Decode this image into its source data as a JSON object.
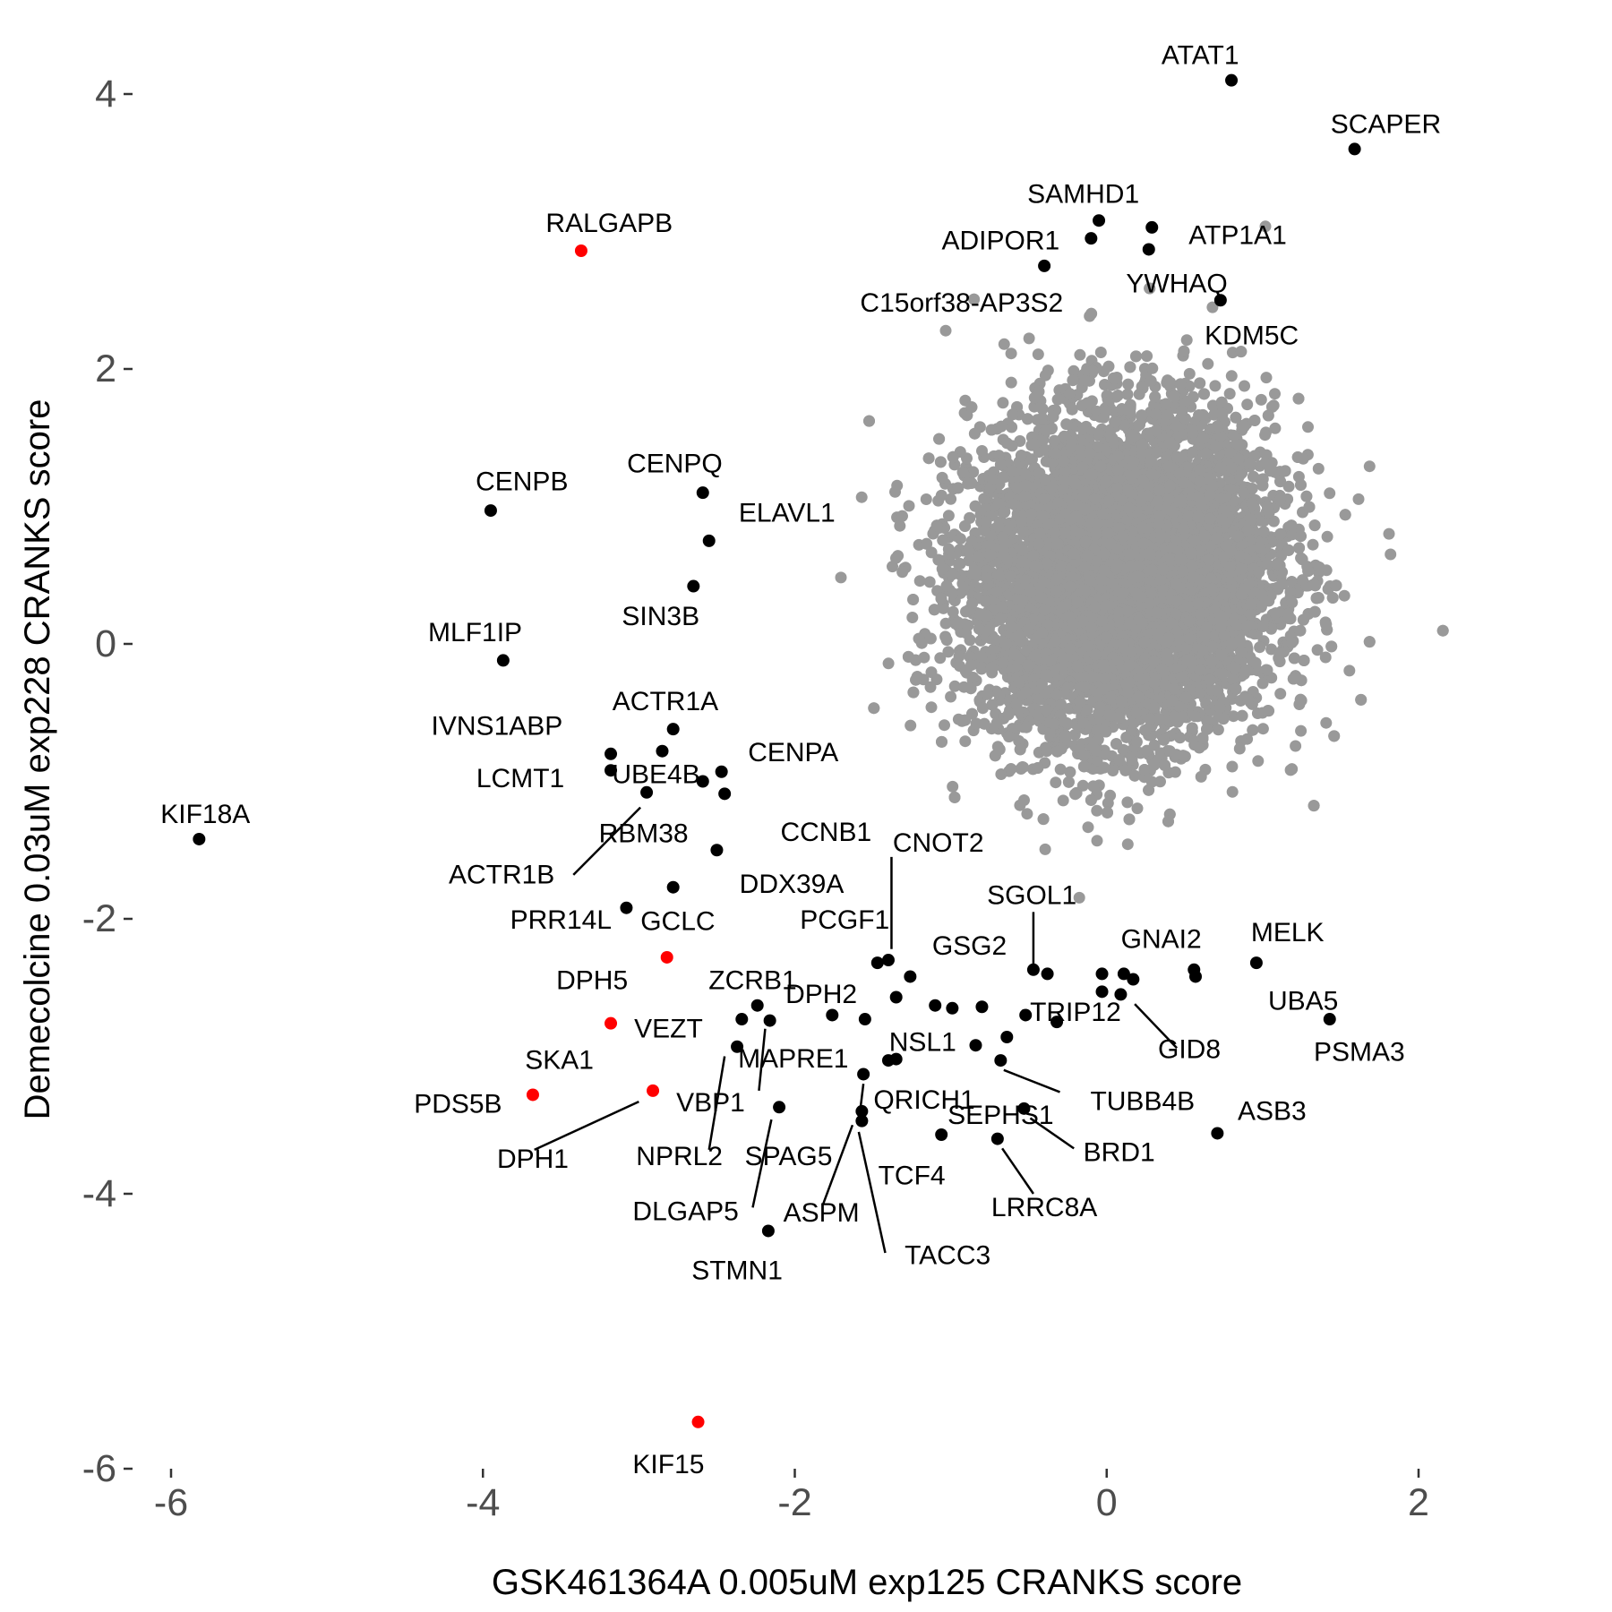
{
  "chart_data": {
    "type": "scatter",
    "xlabel": "GSK461364A 0.005uM exp125 CRANKS score",
    "ylabel": "Demecolcine 0.03uM exp228 CRANKS score",
    "xlim": [
      -6.3,
      2.9
    ],
    "ylim": [
      -6.2,
      4.3
    ],
    "xticks": [
      -6,
      -4,
      -2,
      0,
      2
    ],
    "yticks": [
      -6,
      -4,
      -2,
      0,
      2,
      4
    ],
    "xtick_labels": [
      "-6",
      "-4",
      "-2",
      "0",
      "2"
    ],
    "ytick_labels": [
      "-6",
      "-4",
      "-2",
      "0",
      "2",
      "4"
    ],
    "grid": false,
    "legend": "none",
    "colors": {
      "background_points": "#999999",
      "highlight": "#000000",
      "special": "#ff0000"
    },
    "background_cloud": {
      "description_free": true,
      "center": [
        0.1,
        0.5
      ],
      "sd": [
        0.48,
        0.58
      ],
      "correlation": 0.05,
      "count": 9000
    },
    "points": [
      {
        "gene": "ATAT1",
        "x": 0.8,
        "y": 4.1,
        "color": "black"
      },
      {
        "gene": "SCAPER",
        "x": 1.59,
        "y": 3.6,
        "color": "black"
      },
      {
        "gene": "SAMHD1",
        "x": -0.05,
        "y": 3.08,
        "color": "black"
      },
      {
        "gene": "ADIPOR1",
        "x": -0.1,
        "y": 2.95,
        "color": "black"
      },
      {
        "gene": "ATP1A1",
        "x": 0.29,
        "y": 3.03,
        "color": "black"
      },
      {
        "gene": "YWHAQ",
        "x": 0.27,
        "y": 2.87,
        "color": "black"
      },
      {
        "gene": "C15orf38-AP3S2",
        "x": -0.4,
        "y": 2.75,
        "color": "black"
      },
      {
        "gene": "KDM5C",
        "x": 0.73,
        "y": 2.5,
        "color": "black"
      },
      {
        "gene": "RALGAPB",
        "x": -3.37,
        "y": 2.86,
        "color": "red"
      },
      {
        "gene": "CENPB",
        "x": -3.95,
        "y": 0.97,
        "color": "black"
      },
      {
        "gene": "CENPQ",
        "x": -2.59,
        "y": 1.1,
        "color": "black"
      },
      {
        "gene": "ELAVL1",
        "x": -2.55,
        "y": 0.75,
        "color": "black"
      },
      {
        "gene": "SIN3B",
        "x": -2.65,
        "y": 0.42,
        "color": "black"
      },
      {
        "gene": "MLF1IP",
        "x": -3.87,
        "y": -0.12,
        "color": "black"
      },
      {
        "gene": "ACTR1A",
        "x": -2.78,
        "y": -0.62,
        "color": "black"
      },
      {
        "gene": "IVNS1ABP",
        "x": -3.18,
        "y": -0.8,
        "color": "black"
      },
      {
        "gene": "LCMT1",
        "x": -3.18,
        "y": -0.92,
        "color": "black"
      },
      {
        "gene": "UBE4B",
        "x": -2.85,
        "y": -0.78,
        "color": "black"
      },
      {
        "gene": "CENPA",
        "x": -2.47,
        "y": -0.93,
        "color": "black"
      },
      {
        "gene": "RBM38",
        "x": -2.59,
        "y": -1.0,
        "color": "black"
      },
      {
        "gene": "ACTR1B",
        "x": -2.95,
        "y": -1.08,
        "color": "black"
      },
      {
        "gene": "CCNB1",
        "x": -2.45,
        "y": -1.09,
        "color": "black"
      },
      {
        "gene": "KIF18A",
        "x": -5.82,
        "y": -1.42,
        "color": "black"
      },
      {
        "gene": "DDX39A",
        "x": -2.5,
        "y": -1.5,
        "color": "black"
      },
      {
        "gene": "GCLC",
        "x": -2.78,
        "y": -1.77,
        "color": "black"
      },
      {
        "gene": "PRR14L",
        "x": -3.08,
        "y": -1.92,
        "color": "black"
      },
      {
        "gene": "DPH5",
        "x": -2.82,
        "y": -2.28,
        "color": "red"
      },
      {
        "gene": "CNOT2",
        "x": -1.4,
        "y": -2.3,
        "color": "black"
      },
      {
        "gene": "PCGF1",
        "x": -1.47,
        "y": -2.32,
        "color": "black"
      },
      {
        "gene": "GSG2",
        "x": -1.26,
        "y": -2.42,
        "color": "black"
      },
      {
        "gene": "SGOL1",
        "x": -0.47,
        "y": -2.37,
        "color": "black"
      },
      {
        "gene": "SGOL1",
        "x": -0.38,
        "y": -2.4,
        "color": "black"
      },
      {
        "gene": "GNAI2",
        "x": -0.03,
        "y": -2.4,
        "color": "black"
      },
      {
        "gene": "GNAI2",
        "x": 0.11,
        "y": -2.4,
        "color": "black"
      },
      {
        "gene": "GNAI2",
        "x": 0.17,
        "y": -2.44,
        "color": "black"
      },
      {
        "gene": "GID8",
        "x": -0.03,
        "y": -2.53,
        "color": "black"
      },
      {
        "gene": "GID8",
        "x": 0.09,
        "y": -2.55,
        "color": "black"
      },
      {
        "gene": "UBA5",
        "x": 0.56,
        "y": -2.37,
        "color": "black"
      },
      {
        "gene": "UBA5",
        "x": 0.57,
        "y": -2.42,
        "color": "black"
      },
      {
        "gene": "MELK",
        "x": 0.96,
        "y": -2.32,
        "color": "black"
      },
      {
        "gene": "PSMA3",
        "x": 1.43,
        "y": -2.73,
        "color": "black"
      },
      {
        "gene": "ZCRB1",
        "x": -2.24,
        "y": -2.63,
        "color": "black"
      },
      {
        "gene": "ZCRB1",
        "x": -2.34,
        "y": -2.73,
        "color": "black"
      },
      {
        "gene": "ZCRB1",
        "x": -2.16,
        "y": -2.74,
        "color": "black"
      },
      {
        "gene": "DPH2",
        "x": -1.76,
        "y": -2.7,
        "color": "black"
      },
      {
        "gene": "DPH2",
        "x": -1.55,
        "y": -2.73,
        "color": "black"
      },
      {
        "gene": "NSL1",
        "x": -1.35,
        "y": -2.57,
        "color": "black"
      },
      {
        "gene": "NSL1",
        "x": -1.1,
        "y": -2.63,
        "color": "black"
      },
      {
        "gene": "NSL1",
        "x": -0.99,
        "y": -2.65,
        "color": "black"
      },
      {
        "gene": "NSL1",
        "x": -0.8,
        "y": -2.64,
        "color": "black"
      },
      {
        "gene": "TRIP12",
        "x": -0.52,
        "y": -2.7,
        "color": "black"
      },
      {
        "gene": "TRIP12",
        "x": -0.32,
        "y": -2.75,
        "color": "black"
      },
      {
        "gene": "VEZT",
        "x": -3.18,
        "y": -2.76,
        "color": "red"
      },
      {
        "gene": "MAPRE1",
        "x": -2.37,
        "y": -2.93,
        "color": "black"
      },
      {
        "gene": "NSL1",
        "x": -0.84,
        "y": -2.92,
        "color": "black"
      },
      {
        "gene": "TRIP12",
        "x": -0.64,
        "y": -2.86,
        "color": "black"
      },
      {
        "gene": "TUBB4B",
        "x": -0.68,
        "y": -3.03,
        "color": "black"
      },
      {
        "gene": "QRICH1",
        "x": -1.4,
        "y": -3.03,
        "color": "black"
      },
      {
        "gene": "QRICH1",
        "x": -1.35,
        "y": -3.02,
        "color": "black"
      },
      {
        "gene": "QRICH1",
        "x": -1.56,
        "y": -3.13,
        "color": "black"
      },
      {
        "gene": "SKA1",
        "x": -2.91,
        "y": -3.25,
        "color": "red"
      },
      {
        "gene": "PDS5B",
        "x": -3.68,
        "y": -3.28,
        "color": "red"
      },
      {
        "gene": "VBP1",
        "x": -2.1,
        "y": -3.37,
        "color": "black"
      },
      {
        "gene": "SEPHS1",
        "x": -0.53,
        "y": -3.38,
        "color": "black"
      },
      {
        "gene": "ASPM",
        "x": -1.57,
        "y": -3.4,
        "color": "black"
      },
      {
        "gene": "TCF4",
        "x": -1.57,
        "y": -3.47,
        "color": "black"
      },
      {
        "gene": "SPAG5",
        "x": -1.06,
        "y": -3.57,
        "color": "black"
      },
      {
        "gene": "LRRC8A",
        "x": -0.7,
        "y": -3.6,
        "color": "black"
      },
      {
        "gene": "ASB3",
        "x": 0.71,
        "y": -3.56,
        "color": "black"
      },
      {
        "gene": "STMN1",
        "x": -2.17,
        "y": -4.27,
        "color": "black"
      },
      {
        "gene": "KIF15",
        "x": -2.62,
        "y": -5.66,
        "color": "red"
      }
    ],
    "labels": [
      {
        "text": "ATAT1",
        "x": 0.6,
        "y": 4.28
      },
      {
        "text": "SCAPER",
        "x": 1.79,
        "y": 3.78
      },
      {
        "text": "SAMHD1",
        "x": -0.15,
        "y": 3.27
      },
      {
        "text": "ADIPOR1",
        "x": -0.68,
        "y": 2.93
      },
      {
        "text": "ATP1A1",
        "x": 0.84,
        "y": 2.97
      },
      {
        "text": "YWHAQ",
        "x": 0.45,
        "y": 2.62
      },
      {
        "text": "C15orf38-AP3S2",
        "x": -0.93,
        "y": 2.48
      },
      {
        "text": "KDM5C",
        "x": 0.93,
        "y": 2.24
      },
      {
        "text": "RALGAPB",
        "x": -3.19,
        "y": 3.06
      },
      {
        "text": "CENPB",
        "x": -3.75,
        "y": 1.18
      },
      {
        "text": "CENPQ",
        "x": -2.77,
        "y": 1.31
      },
      {
        "text": "ELAVL1",
        "x": -2.05,
        "y": 0.95
      },
      {
        "text": "SIN3B",
        "x": -2.86,
        "y": 0.2
      },
      {
        "text": "MLF1IP",
        "x": -4.05,
        "y": 0.08
      },
      {
        "text": "ACTR1A",
        "x": -2.83,
        "y": -0.42
      },
      {
        "text": "IVNS1ABP",
        "x": -3.91,
        "y": -0.6
      },
      {
        "text": "LCMT1",
        "x": -3.76,
        "y": -0.98
      },
      {
        "text": "UBE4B",
        "x": -2.89,
        "y": -0.95
      },
      {
        "text": "CENPA",
        "x": -2.01,
        "y": -0.79
      },
      {
        "text": "RBM38",
        "x": -2.97,
        "y": -1.38
      },
      {
        "text": "ACTR1B",
        "x": -3.88,
        "y": -1.68
      },
      {
        "text": "CCNB1",
        "x": -1.8,
        "y": -1.37
      },
      {
        "text": "KIF18A",
        "x": -5.78,
        "y": -1.24
      },
      {
        "text": "DDX39A",
        "x": -2.02,
        "y": -1.75
      },
      {
        "text": "CNOT2",
        "x": -1.08,
        "y": -1.45
      },
      {
        "text": "GCLC",
        "x": -2.75,
        "y": -2.02
      },
      {
        "text": "PRR14L",
        "x": -3.5,
        "y": -2.01
      },
      {
        "text": "PCGF1",
        "x": -1.68,
        "y": -2.01
      },
      {
        "text": "SGOL1",
        "x": -0.48,
        "y": -1.83
      },
      {
        "text": "GSG2",
        "x": -0.88,
        "y": -2.2
      },
      {
        "text": "GNAI2",
        "x": 0.35,
        "y": -2.15
      },
      {
        "text": "MELK",
        "x": 1.16,
        "y": -2.1
      },
      {
        "text": "DPH5",
        "x": -3.3,
        "y": -2.45
      },
      {
        "text": "ZCRB1",
        "x": -2.27,
        "y": -2.45
      },
      {
        "text": "DPH2",
        "x": -1.83,
        "y": -2.55
      },
      {
        "text": "UBA5",
        "x": 1.26,
        "y": -2.6
      },
      {
        "text": "TRIP12",
        "x": -0.2,
        "y": -2.68
      },
      {
        "text": "VEZT",
        "x": -2.81,
        "y": -2.8
      },
      {
        "text": "NSL1",
        "x": -1.18,
        "y": -2.9
      },
      {
        "text": "GID8",
        "x": 0.53,
        "y": -2.95
      },
      {
        "text": "PSMA3",
        "x": 1.62,
        "y": -2.97
      },
      {
        "text": "SKA1",
        "x": -3.51,
        "y": -3.03
      },
      {
        "text": "MAPRE1",
        "x": -2.01,
        "y": -3.02
      },
      {
        "text": "TUBB4B",
        "x": 0.23,
        "y": -3.33
      },
      {
        "text": "QRICH1",
        "x": -1.17,
        "y": -3.32
      },
      {
        "text": "PDS5B",
        "x": -4.16,
        "y": -3.35
      },
      {
        "text": "VBP1",
        "x": -2.54,
        "y": -3.34
      },
      {
        "text": "SEPHS1",
        "x": -0.68,
        "y": -3.43
      },
      {
        "text": "ASB3",
        "x": 1.06,
        "y": -3.4
      },
      {
        "text": "BRD1",
        "x": 0.08,
        "y": -3.7
      },
      {
        "text": "DPH1",
        "x": -3.68,
        "y": -3.75
      },
      {
        "text": "NPRL2",
        "x": -2.74,
        "y": -3.73
      },
      {
        "text": "SPAG5",
        "x": -2.04,
        "y": -3.73
      },
      {
        "text": "TCF4",
        "x": -1.25,
        "y": -3.87
      },
      {
        "text": "LRRC8A",
        "x": -0.4,
        "y": -4.1
      },
      {
        "text": "DLGAP5",
        "x": -2.7,
        "y": -4.13
      },
      {
        "text": "ASPM",
        "x": -1.83,
        "y": -4.14
      },
      {
        "text": "TACC3",
        "x": -1.02,
        "y": -4.45
      },
      {
        "text": "STMN1",
        "x": -2.37,
        "y": -4.56
      },
      {
        "text": "KIF15",
        "x": -2.81,
        "y": -5.97
      }
    ],
    "leader_lines": [
      {
        "from": [
          -1.38,
          -1.55
        ],
        "to": [
          -1.38,
          -2.22
        ],
        "label": "CNOT2"
      },
      {
        "from": [
          -0.47,
          -1.95
        ],
        "to": [
          -0.47,
          -2.36
        ],
        "label": "SGOL1"
      },
      {
        "from": [
          0.45,
          -2.94
        ],
        "to": [
          0.18,
          -2.62
        ],
        "label": "GID8"
      },
      {
        "from": [
          -3.42,
          -1.68
        ],
        "to": [
          -2.99,
          -1.19
        ],
        "label": "ACTR1B"
      },
      {
        "from": [
          -0.3,
          -3.26
        ],
        "to": [
          -0.66,
          -3.1
        ],
        "label": "TUBB4B"
      },
      {
        "from": [
          -3.67,
          -3.68
        ],
        "to": [
          -3.0,
          -3.33
        ],
        "label": "DPH1"
      },
      {
        "from": [
          -2.55,
          -3.68
        ],
        "to": [
          -2.45,
          -3.0
        ],
        "label": "NPRL2"
      },
      {
        "from": [
          -2.23,
          -3.25
        ],
        "to": [
          -2.19,
          -2.8
        ],
        "label": "VBP1"
      },
      {
        "from": [
          -2.27,
          -4.1
        ],
        "to": [
          -2.15,
          -3.46
        ],
        "label": "DLGAP5"
      },
      {
        "from": [
          -1.82,
          -4.08
        ],
        "to": [
          -1.63,
          -3.5
        ],
        "label": "ASPM"
      },
      {
        "from": [
          -1.42,
          -4.43
        ],
        "to": [
          -1.59,
          -3.55
        ],
        "label": "TACC3"
      },
      {
        "from": [
          -0.21,
          -3.67
        ],
        "to": [
          -0.49,
          -3.45
        ],
        "label": "BRD1"
      },
      {
        "from": [
          -0.47,
          -4.0
        ],
        "to": [
          -0.67,
          -3.67
        ],
        "label": "LRRC8A"
      },
      {
        "from": [
          -1.59,
          -3.48
        ],
        "to": [
          -1.56,
          -3.2
        ],
        "label": "QRICH1"
      }
    ]
  }
}
